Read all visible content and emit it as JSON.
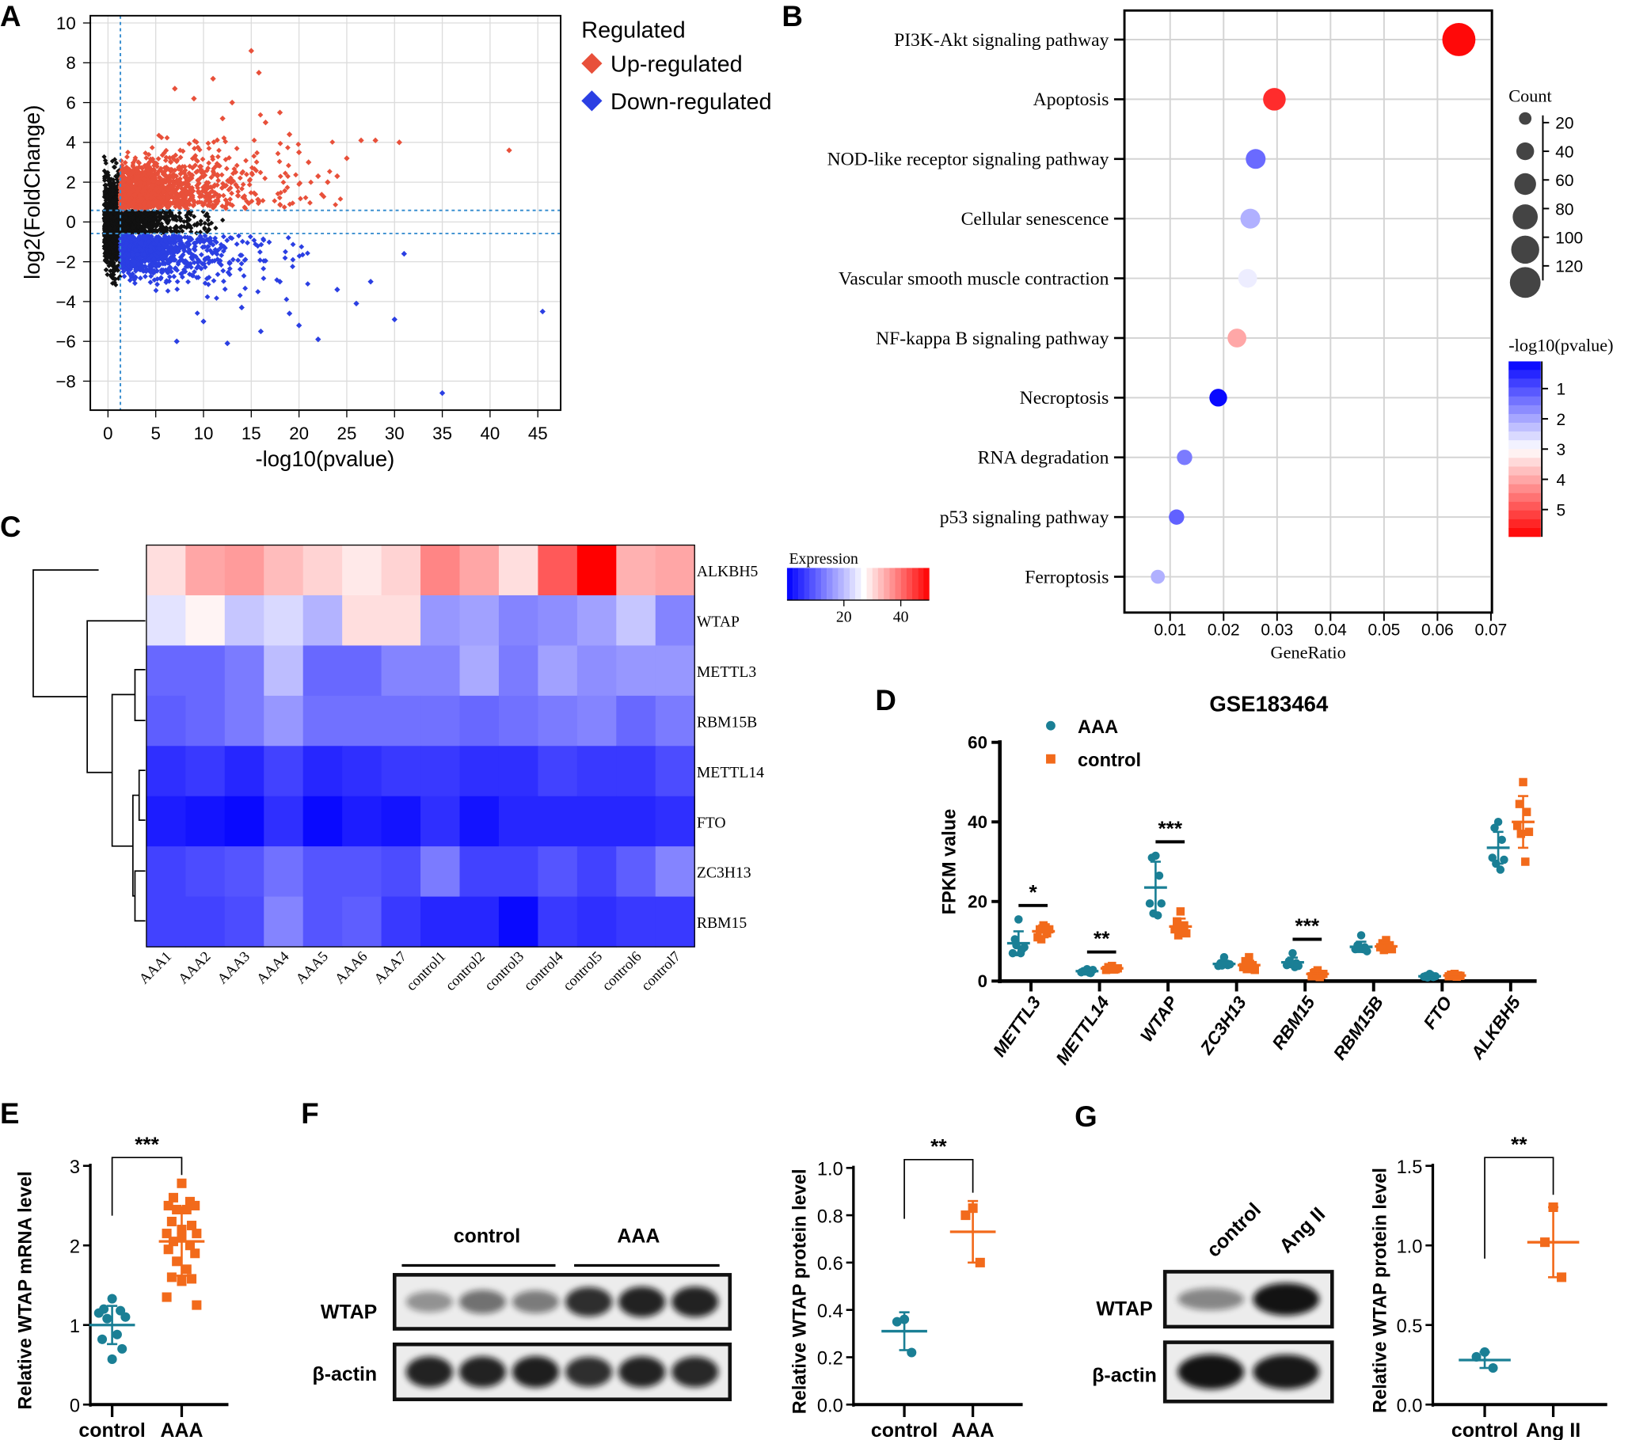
{
  "panels": {
    "A": "A",
    "B": "B",
    "C": "C",
    "D": "D",
    "E": "E",
    "F": "F",
    "G": "G"
  },
  "chart_data": [
    {
      "panel": "A",
      "type": "scatter",
      "xlabel": "-log10(pvalue)",
      "ylabel": "log2(FoldChange)",
      "xlim": [
        -1.8,
        47.4
      ],
      "ylim": [
        -9.5,
        10.4
      ],
      "xticks": [
        0,
        5,
        10,
        15,
        20,
        25,
        30,
        35,
        40,
        45
      ],
      "yticks": [
        -8,
        -6,
        -4,
        -2,
        0,
        2,
        4,
        6,
        8,
        10
      ],
      "grid": true,
      "thresholds": {
        "x": 1.3,
        "y": [
          -0.58,
          0.58
        ]
      },
      "legend": {
        "title": "Regulated",
        "position": "right"
      },
      "series": [
        {
          "name": "Up-regulated",
          "color": "#e8503a",
          "marker": "diamond",
          "points": [
            [
              42,
              3.6
            ],
            [
              30.5,
              4.0
            ],
            [
              28,
              4.1
            ],
            [
              26.5,
              4.1
            ],
            [
              24,
              2.3
            ],
            [
              23,
              2.0
            ],
            [
              22,
              2.3
            ],
            [
              20,
              3.5
            ],
            [
              15,
              8.6
            ],
            [
              15.8,
              7.5
            ],
            [
              11,
              7.2
            ],
            [
              7,
              6.7
            ],
            [
              9,
              6.2
            ],
            [
              18,
              5.5
            ],
            [
              13,
              6.0
            ],
            [
              21,
              3.0
            ],
            [
              19,
              4.4
            ],
            [
              25,
              3.2
            ],
            [
              16.5,
              5.0
            ],
            [
              12,
              5.2
            ]
          ]
        },
        {
          "name": "Down-regulated",
          "color": "#2b3fe3",
          "marker": "diamond",
          "points": [
            [
              45.5,
              -4.5
            ],
            [
              35,
              -8.6
            ],
            [
              30,
              -4.9
            ],
            [
              26,
              -4.1
            ],
            [
              27.5,
              -3.0
            ],
            [
              31,
              -1.6
            ],
            [
              20,
              -5.2
            ],
            [
              22,
              -5.9
            ],
            [
              12.5,
              -6.1
            ],
            [
              7.2,
              -6.0
            ],
            [
              16,
              -5.5
            ],
            [
              24,
              -3.4
            ],
            [
              19,
              -4.6
            ],
            [
              10,
              -5.0
            ],
            [
              14,
              -4.3
            ],
            [
              18,
              -3.0
            ]
          ]
        }
      ]
    },
    {
      "panel": "B",
      "type": "scatter",
      "xlabel": "GeneRatio",
      "xlim": [
        0.0015,
        0.07
      ],
      "xticks": [
        0.01,
        0.02,
        0.03,
        0.04,
        0.05,
        0.06,
        0.07
      ],
      "grid": true,
      "categories": [
        "PI3K-Akt signaling pathway",
        "Apoptosis",
        "NOD-like receptor signaling pathway",
        "Cellular senescence",
        "Vascular smooth muscle contraction",
        "NF-kappa B signaling pathway",
        "Necroptosis",
        "RNA degradation",
        "p53 signaling pathway",
        "Ferroptosis"
      ],
      "gene_ratio": [
        0.064,
        0.0295,
        0.026,
        0.025,
        0.0245,
        0.0225,
        0.019,
        0.0127,
        0.0112,
        0.0077
      ],
      "neg_log10_pvalue": [
        5.8,
        5.4,
        1.3,
        2.1,
        2.8,
        4.0,
        0.2,
        1.5,
        1.2,
        2.1
      ],
      "count": [
        140,
        65,
        50,
        50,
        45,
        45,
        40,
        30,
        30,
        25
      ],
      "size_legend": {
        "title": "Count",
        "values": [
          20,
          40,
          60,
          80,
          100,
          120
        ]
      },
      "color_legend": {
        "title": "-log10(pvalue)",
        "range": [
          0.1,
          5.9
        ],
        "ticks": [
          1,
          2,
          3,
          4,
          5
        ],
        "colors": [
          "#0000ff",
          "#ffffff",
          "#ff0000"
        ]
      }
    },
    {
      "panel": "C",
      "type": "heatmap",
      "rows": [
        "ALKBH5",
        "WTAP",
        "METTL3",
        "RBM15B",
        "METTL14",
        "FTO",
        "ZC3H13",
        "RBM15"
      ],
      "columns": [
        "AAA1",
        "AAA2",
        "AAA3",
        "AAA4",
        "AAA5",
        "AAA6",
        "AAA7",
        "control1",
        "control2",
        "control3",
        "control4",
        "control5",
        "control6",
        "control7"
      ],
      "values": [
        [
          30,
          35,
          36,
          33,
          31,
          29,
          31,
          38,
          35,
          30,
          42,
          50,
          34,
          35
        ],
        [
          24,
          28,
          21,
          23,
          19,
          30,
          30,
          16,
          17,
          14,
          15,
          17,
          21,
          14
        ],
        [
          11,
          11,
          13,
          20,
          11,
          11,
          14,
          14,
          18,
          13,
          17,
          15,
          16,
          16
        ],
        [
          10,
          11,
          13,
          16,
          12,
          12,
          12,
          12,
          11,
          12,
          13,
          14,
          11,
          13
        ],
        [
          5,
          6,
          4,
          7,
          4,
          5,
          6,
          6,
          5,
          5,
          7,
          6,
          6,
          8
        ],
        [
          3,
          2,
          1,
          5,
          1,
          3,
          2,
          5,
          2,
          4,
          4,
          4,
          4,
          5
        ],
        [
          7,
          8,
          9,
          12,
          9,
          9,
          8,
          13,
          7,
          7,
          9,
          7,
          10,
          14
        ],
        [
          7,
          7,
          8,
          14,
          9,
          10,
          6,
          4,
          4,
          1,
          6,
          5,
          6,
          6
        ]
      ],
      "color_legend": {
        "title": "Expression",
        "range": [
          0,
          50
        ],
        "ticks": [
          20,
          40
        ],
        "colors": [
          "#0000ff",
          "#ffffff",
          "#ff0000"
        ]
      }
    },
    {
      "panel": "D",
      "type": "scatter",
      "title": "GSE183464",
      "ylabel": "FPKM value",
      "ylim": [
        0,
        60
      ],
      "yticks": [
        0,
        20,
        40,
        60
      ],
      "categories": [
        "METTL3",
        "METTL14",
        "WTAP",
        "ZC3H13",
        "RBM15",
        "RBM15B",
        "FTO",
        "ALKBH5"
      ],
      "series": [
        {
          "name": "AAA",
          "color": "#1a7f95",
          "marker": "circle",
          "mean": [
            9.5,
            2.5,
            23.5,
            4.3,
            4.7,
            8.6,
            1.2,
            33.5
          ],
          "sd": [
            3,
            0.4,
            6.5,
            0.8,
            1.2,
            1.3,
            0.3,
            4
          ],
          "points": [
            [
              15.5,
              10.5,
              8,
              7,
              8.5,
              9,
              7
            ],
            [
              3,
              2.5,
              2,
              2.2,
              2.8,
              2.4,
              2.1
            ],
            [
              31.5,
              31,
              26.5,
              19.5,
              19.5,
              17,
              16.5
            ],
            [
              6,
              4.5,
              4,
              3.8,
              4.2,
              3.9,
              4.4
            ],
            [
              7,
              5,
              4.5,
              4,
              3.8,
              4.6,
              3.5
            ],
            [
              11.5,
              9,
              8.5,
              8,
              7.5,
              8.2,
              8
            ],
            [
              1.8,
              1.3,
              1,
              1.1,
              1.2,
              0.9,
              1.4
            ],
            [
              40,
              38.5,
              35.5,
              31,
              30.5,
              29.5,
              28
            ]
          ]
        },
        {
          "name": "control",
          "color": "#f26a1b",
          "marker": "square",
          "mean": [
            12.5,
            3.2,
            13.7,
            4,
            1.8,
            8.7,
            1.4,
            40
          ],
          "sd": [
            1.5,
            0.4,
            2,
            1.1,
            0.6,
            1,
            0.3,
            6.5
          ],
          "points": [
            [
              14,
              13,
              12,
              11,
              13,
              10.5,
              13.5
            ],
            [
              3.8,
              3.5,
              3,
              2.8,
              3.2,
              3.4,
              2.9
            ],
            [
              17.5,
              15,
              14,
              13,
              12,
              11.5,
              13.5
            ],
            [
              6,
              5,
              4,
              3.5,
              2.8,
              3,
              3.8
            ],
            [
              2.7,
              2,
              1.5,
              1.2,
              1.8,
              2.2,
              1
            ],
            [
              10.3,
              9.5,
              9,
              8.5,
              8,
              7.8,
              8.2
            ],
            [
              1.8,
              1.6,
              1.4,
              1.2,
              1.3,
              1.5,
              1.1
            ],
            [
              50,
              44.5,
              42.5,
              39,
              37.5,
              37,
              30
            ]
          ]
        }
      ],
      "significance": [
        "*",
        "**",
        "***",
        "",
        "***",
        "",
        "",
        ""
      ]
    },
    {
      "panel": "E",
      "type": "scatter",
      "ylabel": "Relative WTAP mRNA level",
      "ylim": [
        0,
        3
      ],
      "yticks": [
        "0",
        "1",
        "2",
        "3"
      ],
      "significance": "***",
      "groups": [
        {
          "name": "control",
          "color": "#1a7f95",
          "marker": "circle",
          "mean": 1.0,
          "sd": 0.24,
          "points": [
            1.33,
            1.2,
            1.18,
            1.15,
            1.1,
            1.08,
            0.88,
            0.82,
            0.7,
            0.57
          ]
        },
        {
          "name": "AAA",
          "color": "#f26a1b",
          "marker": "square",
          "mean": 2.05,
          "sd": 0.43,
          "points": [
            2.78,
            2.6,
            2.55,
            2.5,
            2.5,
            2.45,
            2.45,
            2.3,
            2.25,
            2.2,
            2.15,
            2.15,
            2.1,
            2.05,
            2.0,
            1.95,
            1.9,
            1.8,
            1.7,
            1.6,
            1.58,
            1.55,
            1.35,
            1.25
          ]
        }
      ]
    },
    {
      "panel": "F",
      "type": "scatter",
      "ylabel": "Relative WTAP protein level",
      "ylim": [
        0,
        1
      ],
      "yticks": [
        "0.0",
        "0.2",
        "0.4",
        "0.6",
        "0.8",
        "1.0"
      ],
      "significance": "**",
      "groups": [
        {
          "name": "control",
          "color": "#1a7f95",
          "marker": "circle",
          "mean": 0.31,
          "sd": 0.08,
          "points": [
            0.36,
            0.35,
            0.22
          ]
        },
        {
          "name": "AAA",
          "color": "#f26a1b",
          "marker": "square",
          "mean": 0.73,
          "sd": 0.13,
          "points": [
            0.83,
            0.8,
            0.6
          ]
        }
      ]
    },
    {
      "panel": "G",
      "type": "scatter",
      "ylabel": "Relative WTAP protein level",
      "ylim": [
        0,
        1.5
      ],
      "yticks": [
        "0.0",
        "0.5",
        "1.0",
        "1.5"
      ],
      "significance": "**",
      "groups": [
        {
          "name": "control",
          "color": "#1a7f95",
          "marker": "circle",
          "mean": 0.28,
          "sd": 0.05,
          "points": [
            0.33,
            0.3,
            0.23
          ]
        },
        {
          "name": "Ang II",
          "color": "#f26a1b",
          "marker": "square",
          "mean": 1.02,
          "sd": 0.22,
          "points": [
            1.24,
            1.02,
            0.8
          ]
        }
      ]
    }
  ],
  "blots": {
    "F": {
      "groups": [
        "control",
        "AAA"
      ],
      "rows": [
        {
          "label": "WTAP",
          "intensity": [
            0.4,
            0.55,
            0.5,
            0.85,
            0.9,
            0.9
          ]
        },
        {
          "label": "β-actin",
          "intensity": [
            0.9,
            0.9,
            0.92,
            0.85,
            0.9,
            0.88
          ]
        }
      ]
    },
    "G": {
      "groups": [
        "control",
        "Ang II"
      ],
      "rows": [
        {
          "label": "WTAP",
          "intensity": [
            0.45,
            0.97
          ]
        },
        {
          "label": "β-actin",
          "intensity": [
            0.97,
            0.95
          ]
        }
      ]
    }
  }
}
